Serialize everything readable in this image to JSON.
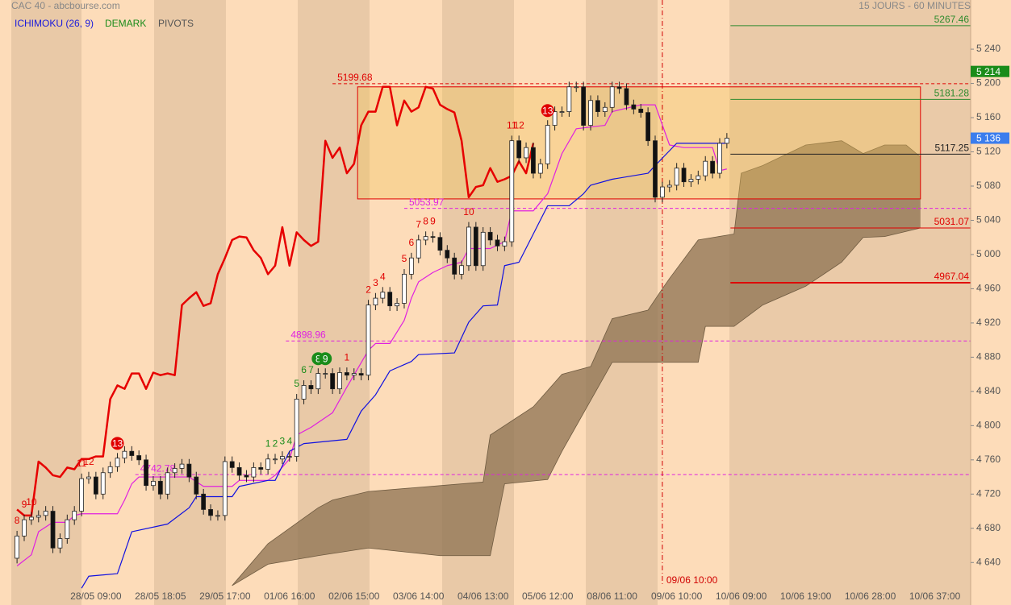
{
  "chart_data": {
    "type": "candlestick",
    "title": "CAC 40 - abcbourse.com",
    "subtitle": "15 JOURS - 60 MINUTES",
    "indicators": [
      {
        "label": "ICHIMOKU (26, 9)",
        "color": "#1a1adc"
      },
      {
        "label": "DEMARK",
        "color": "#1a8c1a"
      },
      {
        "label": "PIVOTS",
        "color": "#555555"
      }
    ],
    "xlim": [
      -0.8,
      133
    ],
    "ylim": [
      4596,
      5297.5
    ],
    "xticks": [
      {
        "value": 11,
        "label": "28/05 09:00"
      },
      {
        "value": 20,
        "label": "28/05 18:05"
      },
      {
        "value": 29,
        "label": "29/05 17:00"
      },
      {
        "value": 38,
        "label": "01/06 16:00"
      },
      {
        "value": 47,
        "label": "02/06 15:00"
      },
      {
        "value": 56,
        "label": "03/06 14:00"
      },
      {
        "value": 65,
        "label": "04/06 13:00"
      },
      {
        "value": 74,
        "label": "05/06 12:00"
      },
      {
        "value": 83,
        "label": "08/06 11:00"
      },
      {
        "value": 92,
        "label": "09/06 10:00"
      },
      {
        "value": 101,
        "label": "10/06 09:00"
      },
      {
        "value": 110,
        "label": "10/06 19:00"
      },
      {
        "value": 119,
        "label": "10/06 28:00"
      },
      {
        "value": 128,
        "label": "10/06 37:00"
      }
    ],
    "yticks": [
      {
        "value": 4640,
        "label": "4 640"
      },
      {
        "value": 4680,
        "label": "4 680"
      },
      {
        "value": 4720,
        "label": "4 720"
      },
      {
        "value": 4760,
        "label": "4 760"
      },
      {
        "value": 4800,
        "label": "4 800"
      },
      {
        "value": 4840,
        "label": "4 840"
      },
      {
        "value": 4880,
        "label": "4 880"
      },
      {
        "value": 4920,
        "label": "4 920"
      },
      {
        "value": 4960,
        "label": "4 960"
      },
      {
        "value": 5000,
        "label": "5 000"
      },
      {
        "value": 5040,
        "label": "5 040"
      },
      {
        "value": 5080,
        "label": "5 080"
      },
      {
        "value": 5120,
        "label": "5 120"
      },
      {
        "value": 5160,
        "label": "5 160"
      },
      {
        "value": 5200,
        "label": "5 200"
      },
      {
        "value": 5240,
        "label": "5 240"
      }
    ],
    "candles": {
      "open": [
        4645,
        4671,
        4690,
        4693,
        4695,
        4700,
        4657,
        4668,
        4690,
        4700,
        4738,
        4740,
        4720,
        4745,
        4752,
        4762,
        4770,
        4765,
        4760,
        4730,
        4735,
        4720,
        4745,
        4750,
        4755,
        4740,
        4720,
        4702,
        4695,
        4695,
        4758,
        4751,
        4742,
        4740,
        4751,
        4749,
        4761,
        4761,
        4764,
        4764,
        4831,
        4847,
        4843,
        4861,
        4861,
        4843,
        4862,
        4859,
        4861,
        4859,
        4941,
        4949,
        4956,
        4940,
        4943,
        4977,
        4996,
        5017,
        5021,
        5020,
        5005,
        4996,
        4977,
        4987,
        5032,
        4987,
        5026,
        5017,
        5010,
        5015,
        5133,
        5113,
        5125,
        5095,
        5106,
        5151,
        5167,
        5167,
        5196,
        5196,
        5151,
        5180,
        5167,
        5172,
        5196,
        5194,
        5175,
        5170,
        5166,
        5133,
        5067,
        5079,
        5081,
        5101,
        5085,
        5088,
        5092,
        5109,
        5095,
        5130
      ],
      "high": [
        4677,
        4696,
        4699,
        4701,
        4706,
        4706,
        4674,
        4696,
        4706,
        4744,
        4746,
        4746,
        4751,
        4758,
        4768,
        4776,
        4776,
        4771,
        4766,
        4741,
        4741,
        4751,
        4756,
        4761,
        4761,
        4746,
        4726,
        4708,
        4701,
        4764,
        4764,
        4757,
        4748,
        4757,
        4757,
        4767,
        4767,
        4770,
        4770,
        4837,
        4853,
        4853,
        4867,
        4867,
        4867,
        4868,
        4868,
        4867,
        4867,
        4947,
        4955,
        4962,
        4962,
        4949,
        4983,
        5002,
        5023,
        5027,
        5027,
        5026,
        5011,
        5002,
        4993,
        5038,
        5038,
        5032,
        5032,
        5023,
        5021,
        5139,
        5139,
        5131,
        5131,
        5112,
        5157,
        5173,
        5173,
        5202,
        5202,
        5202,
        5186,
        5186,
        5178,
        5202,
        5202,
        5200,
        5181,
        5176,
        5172,
        5139,
        5085,
        5087,
        5107,
        5107,
        5094,
        5098,
        5115,
        5115,
        5136,
        5142
      ],
      "low": [
        4639,
        4665,
        4684,
        4687,
        4689,
        4651,
        4651,
        4662,
        4684,
        4694,
        4732,
        4714,
        4714,
        4739,
        4746,
        4756,
        4759,
        4754,
        4724,
        4724,
        4714,
        4714,
        4739,
        4744,
        4734,
        4714,
        4696,
        4689,
        4689,
        4689,
        4745,
        4736,
        4734,
        4734,
        4743,
        4743,
        4755,
        4755,
        4758,
        4758,
        4825,
        4837,
        4837,
        4855,
        4837,
        4837,
        4853,
        4853,
        4853,
        4853,
        4935,
        4943,
        4934,
        4934,
        4937,
        4971,
        4990,
        5011,
        5014,
        4999,
        4990,
        4971,
        4971,
        4981,
        4981,
        4981,
        5011,
        5004,
        5004,
        5009,
        5107,
        5107,
        5089,
        5089,
        5100,
        5145,
        5161,
        5161,
        5190,
        5145,
        5145,
        5161,
        5161,
        5166,
        5188,
        5169,
        5164,
        5160,
        5127,
        5061,
        5061,
        5073,
        5075,
        5079,
        5079,
        5082,
        5086,
        5089,
        5089,
        5124
      ],
      "close": [
        4671,
        4690,
        4693,
        4695,
        4700,
        4657,
        4668,
        4690,
        4700,
        4738,
        4740,
        4720,
        4745,
        4752,
        4762,
        4770,
        4765,
        4760,
        4730,
        4735,
        4720,
        4745,
        4750,
        4755,
        4740,
        4720,
        4702,
        4695,
        4695,
        4758,
        4751,
        4742,
        4740,
        4751,
        4749,
        4761,
        4761,
        4764,
        4764,
        4831,
        4847,
        4843,
        4861,
        4861,
        4843,
        4862,
        4859,
        4861,
        4859,
        4941,
        4949,
        4956,
        4940,
        4943,
        4977,
        4996,
        5017,
        5021,
        5020,
        5005,
        4996,
        4977,
        4987,
        5032,
        4987,
        5026,
        5017,
        5010,
        5015,
        5133,
        5113,
        5125,
        5095,
        5106,
        5151,
        5167,
        5167,
        5196,
        5196,
        5151,
        5180,
        5167,
        5172,
        5196,
        5194,
        5175,
        5170,
        5166,
        5133,
        5067,
        5079,
        5081,
        5101,
        5085,
        5088,
        5092,
        5109,
        5095,
        5130,
        5136
      ]
    },
    "lines": [
      {
        "color": "#e60000",
        "width": 2.5,
        "values": [
          4702,
          4695,
          4695,
          4758,
          4751,
          4742,
          4740,
          4751,
          4749,
          4761,
          4761,
          4764,
          4764,
          4831,
          4847,
          4843,
          4861,
          4861,
          4843,
          4862,
          4859,
          4861,
          4859,
          4941,
          4949,
          4956,
          4940,
          4943,
          4977,
          4996,
          5017,
          5021,
          5020,
          5005,
          4996,
          4977,
          4987,
          5032,
          4987,
          5026,
          5017,
          5010,
          5015,
          5133,
          5113,
          5125,
          5095,
          5106,
          5151,
          5167,
          5167,
          5196,
          5196,
          5151,
          5180,
          5167,
          5172,
          5196,
          5194,
          5175,
          5170,
          5166,
          5133,
          5067,
          5079,
          5081,
          5101,
          5085,
          5088,
          5092,
          5109,
          5095,
          5130
        ]
      },
      {
        "color": "#e020e0",
        "width": 1.2,
        "x": [
          0,
          2,
          3,
          5,
          7,
          8,
          9,
          14,
          15,
          16,
          17,
          24,
          26,
          30,
          31,
          35,
          36,
          38,
          39,
          41,
          44,
          46,
          49,
          50,
          52,
          54,
          55,
          56,
          58,
          60,
          62,
          63,
          66,
          68,
          69,
          72,
          74,
          76,
          78,
          82,
          83,
          87,
          89,
          91,
          93,
          97,
          98,
          99
        ],
        "values": [
          4636,
          4649,
          4676,
          4687,
          4687,
          4695,
          4697,
          4697,
          4713,
          4732,
          4740,
          4740,
          4729,
          4729,
          4736,
          4736,
          4742,
          4761,
          4789,
          4798,
          4815,
          4845,
          4888,
          4896,
          4896,
          4923,
          4949,
          4968,
          4979,
          4987,
          4991,
          5007,
          5007,
          5015,
          5051,
          5051,
          5071,
          5118,
          5147,
          5151,
          5167,
          5175,
          5175,
          5128,
          5125,
          5125,
          5098,
          5100
        ]
      },
      {
        "color": "#1010e0",
        "width": 1.2,
        "x": [
          9,
          10,
          14,
          16,
          21,
          24,
          25,
          30,
          31,
          35,
          36,
          38,
          40,
          46,
          48,
          50,
          52,
          55,
          56,
          61,
          63,
          65,
          67,
          68,
          70,
          72,
          74,
          77,
          79,
          80,
          83,
          88,
          89,
          92,
          99
        ],
        "values": [
          4610,
          4624,
          4627,
          4676,
          4685,
          4704,
          4717,
          4717,
          4729,
          4736,
          4736,
          4770,
          4779,
          4784,
          4817,
          4836,
          4864,
          4875,
          4883,
          4885,
          4921,
          4940,
          4941,
          4987,
          4991,
          5024,
          5057,
          5057,
          5071,
          5081,
          5088,
          5095,
          5104,
          5130,
          5130
        ]
      }
    ],
    "cloud": {
      "color": "#8c7252",
      "upper": {
        "x": [
          30,
          35,
          42,
          44,
          49,
          65,
          66,
          72,
          76,
          80,
          83,
          88,
          90,
          91,
          95,
          100,
          101,
          104,
          110,
          115,
          118,
          121,
          124,
          126
        ],
        "values": [
          4613,
          4662,
          4704,
          4713,
          4723,
          4734,
          4789,
          4822,
          4860,
          4869,
          4925,
          4935,
          4960,
          4972,
          5017,
          5024,
          5095,
          5104,
          5128,
          5133,
          5118,
          5128,
          5128,
          5114
        ]
      },
      "lower": {
        "x": [
          30,
          35,
          42,
          49,
          59,
          66,
          68,
          74,
          76,
          83,
          90,
          95,
          96,
          100,
          104,
          110,
          115,
          118,
          121,
          126
        ],
        "values": [
          4613,
          4638,
          4648,
          4657,
          4648,
          4648,
          4732,
          4737,
          4770,
          4874,
          4874,
          4874,
          4916,
          4916,
          4941,
          4963,
          4991,
          5020,
          5021,
          5031
        ]
      }
    },
    "box": {
      "x": [
        47.5,
        126
      ],
      "y": [
        5065,
        5196
      ],
      "color": "#e00000"
    },
    "levels": [
      {
        "value": 5199.68,
        "from": 44,
        "color": "#e00000"
      },
      {
        "value": 5053.97,
        "from": 54,
        "color": "#e020e0"
      },
      {
        "value": 4898.96,
        "from": 37.5,
        "color": "#e020e0"
      },
      {
        "value": 4742.78,
        "from": 16.5,
        "color": "#e020e0"
      }
    ],
    "pivots": [
      {
        "value": 5267.46,
        "color": "#2e8b2e"
      },
      {
        "value": 5181.28,
        "color": "#2e8b2e"
      },
      {
        "value": 5117.25,
        "color": "#222222"
      },
      {
        "value": 5031.07,
        "color": "#e00000"
      },
      {
        "value": 4967.04,
        "color": "#e00000"
      }
    ],
    "marker_line": {
      "x": 90,
      "label": "09/06 10:00",
      "color": "#d00000"
    },
    "price_tags": [
      {
        "value": 5214,
        "label": "5 214",
        "color": "#1a8c1a"
      },
      {
        "value": 5136,
        "label": "5 136",
        "color": "#3b7ded"
      }
    ],
    "demark": [
      {
        "x": 0,
        "label": "8",
        "color": "#e00000"
      },
      {
        "x": 1,
        "label": "9",
        "color": "#e00000"
      },
      {
        "x": 2,
        "label": "10",
        "color": "#e00000"
      },
      {
        "x": 9,
        "label": "11",
        "color": "#e00000"
      },
      {
        "x": 10,
        "label": "12",
        "color": "#e00000"
      },
      {
        "x": 14,
        "label": "13",
        "color": "#e00000",
        "circle": true
      },
      {
        "x": 35,
        "label": "1",
        "color": "#1a8c1a"
      },
      {
        "x": 36,
        "label": "2",
        "color": "#1a8c1a"
      },
      {
        "x": 37,
        "label": "3",
        "color": "#1a8c1a"
      },
      {
        "x": 38,
        "label": "4",
        "color": "#1a8c1a"
      },
      {
        "x": 39,
        "label": "5",
        "color": "#1a8c1a"
      },
      {
        "x": 40,
        "label": "6",
        "color": "#1a8c1a"
      },
      {
        "x": 41,
        "label": "7",
        "color": "#1a8c1a"
      },
      {
        "x": 42,
        "label": "8",
        "color": "#1a8c1a",
        "circle": true
      },
      {
        "x": 43,
        "label": "9",
        "color": "#1a8c1a",
        "circle": true
      },
      {
        "x": 46,
        "label": "1",
        "color": "#e00000"
      },
      {
        "x": 49,
        "label": "2",
        "color": "#e00000"
      },
      {
        "x": 50,
        "label": "3",
        "color": "#e00000"
      },
      {
        "x": 51,
        "label": "4",
        "color": "#e00000"
      },
      {
        "x": 54,
        "label": "5",
        "color": "#e00000"
      },
      {
        "x": 55,
        "label": "6",
        "color": "#e00000"
      },
      {
        "x": 56,
        "label": "7",
        "color": "#e00000"
      },
      {
        "x": 57,
        "label": "8",
        "color": "#e00000"
      },
      {
        "x": 58,
        "label": "9",
        "color": "#e00000"
      },
      {
        "x": 63,
        "label": "10",
        "color": "#e00000"
      },
      {
        "x": 69,
        "label": "11",
        "color": "#e00000"
      },
      {
        "x": 70,
        "label": "12",
        "color": "#e00000"
      },
      {
        "x": 74,
        "label": "13",
        "color": "#e00000",
        "circle": true
      }
    ]
  }
}
